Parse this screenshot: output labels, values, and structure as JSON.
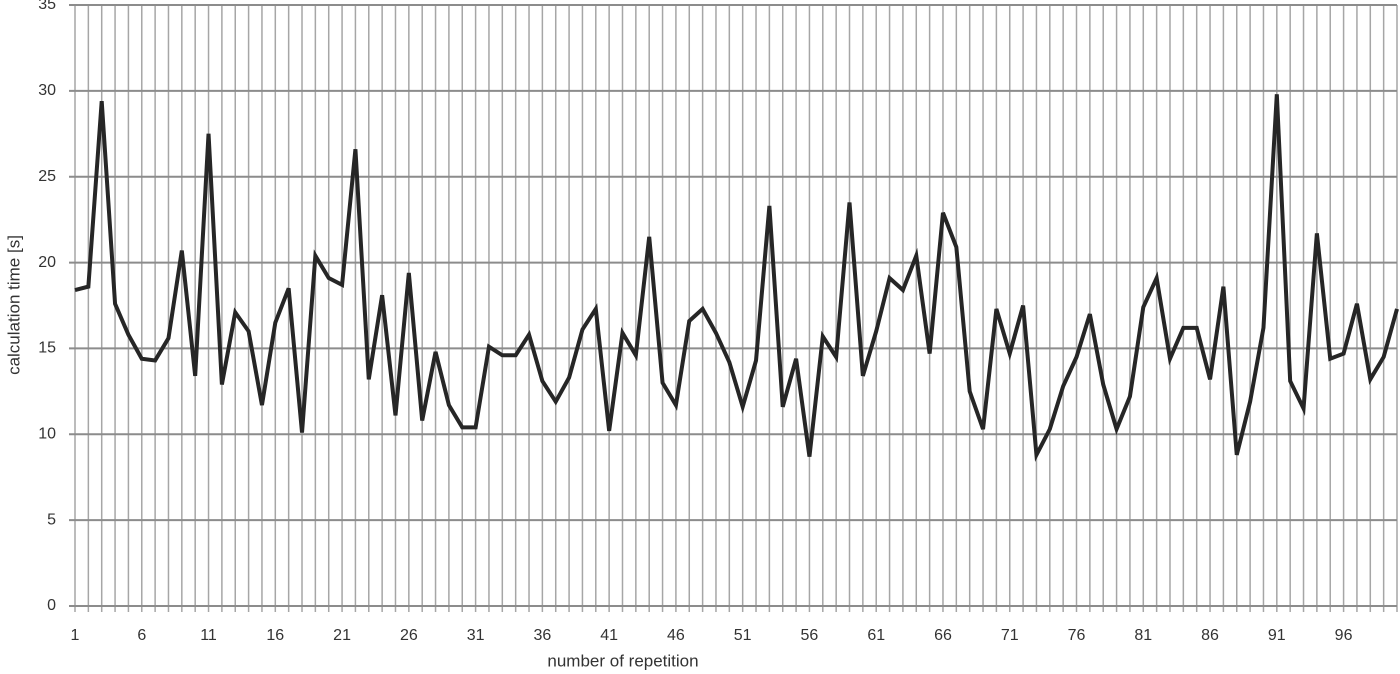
{
  "chart_data": {
    "type": "line",
    "y_label": "calculation time [s]",
    "x_label": "number of repetition",
    "categories": [
      "1",
      null,
      null,
      null,
      null,
      "6",
      null,
      null,
      null,
      null,
      "11",
      null,
      null,
      null,
      null,
      "16",
      null,
      null,
      null,
      null,
      "21",
      null,
      null,
      null,
      null,
      "26",
      null,
      null,
      null,
      null,
      "31",
      null,
      null,
      null,
      null,
      "36",
      null,
      null,
      null,
      null,
      "41",
      null,
      null,
      null,
      null,
      "46",
      null,
      null,
      null,
      null,
      "51",
      null,
      null,
      null,
      null,
      "56",
      null,
      null,
      null,
      null,
      "61",
      null,
      null,
      null,
      null,
      "66",
      null,
      null,
      null,
      null,
      "71",
      null,
      null,
      null,
      null,
      "76",
      null,
      null,
      null,
      null,
      "81",
      null,
      null,
      null,
      null,
      "86",
      null,
      null,
      null,
      null,
      "91",
      null,
      null,
      null,
      null,
      "96",
      null,
      null,
      null,
      null
    ],
    "values": [
      18.4,
      18.6,
      29.4,
      17.6,
      15.8,
      14.4,
      14.3,
      15.6,
      20.7,
      13.4,
      27.5,
      12.9,
      17.1,
      16.0,
      11.7,
      16.5,
      18.5,
      10.1,
      20.4,
      19.1,
      18.7,
      26.6,
      13.2,
      18.1,
      11.1,
      19.4,
      10.8,
      14.8,
      11.7,
      10.4,
      10.4,
      15.1,
      14.6,
      14.6,
      15.8,
      13.1,
      11.9,
      13.3,
      16.1,
      17.3,
      10.2,
      15.9,
      14.6,
      21.5,
      13.0,
      11.7,
      16.6,
      17.3,
      15.9,
      14.2,
      11.6,
      14.3,
      23.3,
      11.6,
      14.4,
      8.7,
      15.7,
      14.5,
      23.5,
      13.4,
      16.0,
      19.1,
      18.4,
      20.4,
      14.7,
      22.9,
      20.9,
      12.5,
      10.3,
      17.3,
      14.7,
      17.5,
      8.8,
      10.3,
      12.8,
      14.5,
      17.0,
      12.9,
      10.3,
      12.2,
      17.4,
      19.1,
      14.4,
      16.2,
      16.2,
      13.2,
      18.6,
      8.8,
      11.9,
      16.2,
      29.8,
      13.1,
      11.5,
      21.7,
      14.4,
      14.7,
      17.6,
      13.2,
      14.5,
      17.3
    ],
    "color": "#262626",
    "ylim": [
      0,
      35
    ],
    "yticks": [
      0,
      5,
      10,
      15,
      20,
      25,
      30,
      35
    ],
    "grid": true
  }
}
